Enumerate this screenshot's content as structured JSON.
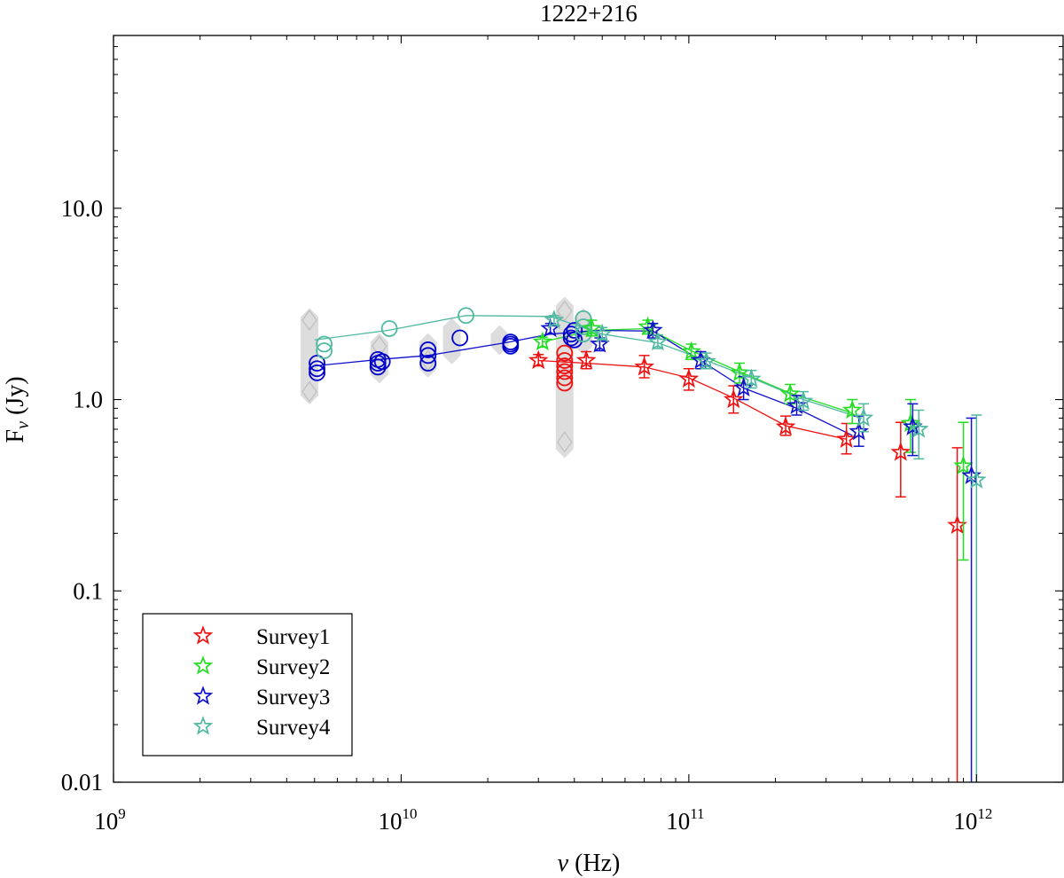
{
  "chart_data": {
    "type": "scatter",
    "title": "1222+216",
    "xlabel": {
      "symbol": "ν",
      "rest": " (Hz)"
    },
    "ylabel": {
      "symbol": "F",
      "subscript": "ν",
      "rest": " (Jy)"
    },
    "x_scale": "log",
    "y_scale": "log",
    "xlim": [
      1000000000.0,
      2000000000000.0
    ],
    "ylim": [
      0.01,
      80
    ],
    "x_ticks": [
      {
        "value": 1000000000.0,
        "base": "10",
        "exp": "9"
      },
      {
        "value": 10000000000.0,
        "base": "10",
        "exp": "10"
      },
      {
        "value": 100000000000.0,
        "base": "10",
        "exp": "11"
      },
      {
        "value": 1000000000000.0,
        "base": "10",
        "exp": "12"
      }
    ],
    "y_ticks": [
      {
        "value": 0.01,
        "label": "0.01"
      },
      {
        "value": 0.1,
        "label": "0.1"
      },
      {
        "value": 1,
        "label": "1.0"
      },
      {
        "value": 10,
        "label": "10.0"
      }
    ],
    "grid": false,
    "legend_position": "bottom-left",
    "gray_diamond_bands": [
      {
        "x": 4800000000.0,
        "ylo": 1.05,
        "yhi": 2.7
      },
      {
        "x": 8400000000.0,
        "ylo": 1.35,
        "yhi": 2.0
      },
      {
        "x": 12400000000.0,
        "ylo": 1.45,
        "yhi": 2.0
      },
      {
        "x": 15000000000.0,
        "ylo": 1.7,
        "yhi": 2.4
      },
      {
        "x": 22000000000.0,
        "ylo": 1.9,
        "yhi": 2.2
      },
      {
        "x": 37000000000.0,
        "ylo": 0.55,
        "yhi": 3.1
      },
      {
        "x": 43000000000.0,
        "ylo": 1.9,
        "yhi": 2.7
      }
    ],
    "gray_diamond_points": [
      {
        "x": 4800000000.0,
        "y": 2.6
      },
      {
        "x": 4800000000.0,
        "y": 1.1
      },
      {
        "x": 8400000000.0,
        "y": 1.9
      },
      {
        "x": 12400000000.0,
        "y": 1.6
      },
      {
        "x": 37000000000.0,
        "y": 0.6
      },
      {
        "x": 37000000000.0,
        "y": 2.9
      }
    ],
    "circles": [
      {
        "color": "#0000cc",
        "points": [
          {
            "x": 5100000000.0,
            "y": 1.55
          },
          {
            "x": 5100000000.0,
            "y": 1.45
          },
          {
            "x": 5100000000.0,
            "y": 1.38
          },
          {
            "x": 8300000000.0,
            "y": 1.62
          },
          {
            "x": 8300000000.0,
            "y": 1.55
          },
          {
            "x": 8300000000.0,
            "y": 1.48
          },
          {
            "x": 8600000000.0,
            "y": 1.58
          },
          {
            "x": 12400000000.0,
            "y": 1.82
          },
          {
            "x": 12400000000.0,
            "y": 1.7
          },
          {
            "x": 12400000000.0,
            "y": 1.55
          },
          {
            "x": 16000000000.0,
            "y": 2.1
          },
          {
            "x": 24000000000.0,
            "y": 2.0
          },
          {
            "x": 24000000000.0,
            "y": 1.95
          },
          {
            "x": 24000000000.0,
            "y": 1.9
          },
          {
            "x": 39000000000.0,
            "y": 2.2
          },
          {
            "x": 39000000000.0,
            "y": 2.1
          },
          {
            "x": 40000000000.0,
            "y": 2.3
          },
          {
            "x": 40000000000.0,
            "y": 2.05
          }
        ]
      },
      {
        "color": "#4fb9a0",
        "points": [
          {
            "x": 5400000000.0,
            "y": 1.95
          },
          {
            "x": 5400000000.0,
            "y": 1.8
          },
          {
            "x": 9100000000.0,
            "y": 2.35
          },
          {
            "x": 16800000000.0,
            "y": 2.75
          },
          {
            "x": 43000000000.0,
            "y": 2.65
          },
          {
            "x": 43000000000.0,
            "y": 2.4
          },
          {
            "x": 43000000000.0,
            "y": 2.2
          }
        ]
      },
      {
        "color": "#ee1111",
        "points": [
          {
            "x": 37000000000.0,
            "y": 1.75
          },
          {
            "x": 37000000000.0,
            "y": 1.6
          },
          {
            "x": 37000000000.0,
            "y": 1.5
          },
          {
            "x": 37000000000.0,
            "y": 1.4
          },
          {
            "x": 37000000000.0,
            "y": 1.3
          },
          {
            "x": 37000000000.0,
            "y": 1.22
          }
        ]
      }
    ],
    "series": [
      {
        "name": "Survey1",
        "color": "#ee1111",
        "line": [
          [
            30000000000.0,
            1.6
          ],
          [
            44000000000.0,
            1.55
          ],
          [
            70000000000.0,
            1.48
          ],
          [
            100000000000.0,
            1.3
          ],
          [
            143000000000.0,
            1.02
          ],
          [
            217000000000.0,
            0.73
          ],
          [
            353000000000.0,
            0.62
          ]
        ],
        "points": [
          {
            "x": 30000000000.0,
            "y": 1.6,
            "lo": 1.5,
            "hi": 1.72
          },
          {
            "x": 44000000000.0,
            "y": 1.6,
            "lo": 1.45,
            "hi": 1.78
          },
          {
            "x": 70000000000.0,
            "y": 1.48,
            "lo": 1.3,
            "hi": 1.7
          },
          {
            "x": 100000000000.0,
            "y": 1.28,
            "lo": 1.12,
            "hi": 1.45
          },
          {
            "x": 143000000000.0,
            "y": 1.0,
            "lo": 0.85,
            "hi": 1.18
          },
          {
            "x": 217000000000.0,
            "y": 0.72,
            "lo": 0.65,
            "hi": 0.82
          },
          {
            "x": 353000000000.0,
            "y": 0.62,
            "lo": 0.52,
            "hi": 0.75
          },
          {
            "x": 545000000000.0,
            "y": 0.53,
            "lo": 0.31,
            "hi": 0.76
          },
          {
            "x": 857000000000.0,
            "y": 0.22,
            "lo": 0.01,
            "hi": 0.56
          }
        ]
      },
      {
        "name": "Survey2",
        "color": "#22dd22",
        "line": [
          [
            31000000000.0,
            2.0
          ],
          [
            46000000000.0,
            2.3
          ],
          [
            72000000000.0,
            2.35
          ],
          [
            102000000000.0,
            1.8
          ],
          [
            150000000000.0,
            1.4
          ],
          [
            225000000000.0,
            1.08
          ],
          [
            370000000000.0,
            0.85
          ]
        ],
        "points": [
          {
            "x": 31000000000.0,
            "y": 2.0,
            "lo": 1.88,
            "hi": 2.12
          },
          {
            "x": 46000000000.0,
            "y": 2.35,
            "lo": 2.15,
            "hi": 2.6
          },
          {
            "x": 72000000000.0,
            "y": 2.4,
            "lo": 2.2,
            "hi": 2.6
          },
          {
            "x": 102000000000.0,
            "y": 1.78,
            "lo": 1.62,
            "hi": 1.95
          },
          {
            "x": 150000000000.0,
            "y": 1.38,
            "lo": 1.22,
            "hi": 1.55
          },
          {
            "x": 225000000000.0,
            "y": 1.07,
            "lo": 0.95,
            "hi": 1.2
          },
          {
            "x": 370000000000.0,
            "y": 0.88,
            "lo": 0.75,
            "hi": 1.0
          },
          {
            "x": 590000000000.0,
            "y": 0.75,
            "lo": 0.53,
            "hi": 1.0
          },
          {
            "x": 900000000000.0,
            "y": 0.45,
            "lo": 0.145,
            "hi": 0.76
          }
        ]
      },
      {
        "name": "Survey3",
        "color": "#1111cc",
        "line": [
          [
            5000000000.0,
            1.5
          ],
          [
            8400000000.0,
            1.62
          ],
          [
            12400000000.0,
            1.7
          ],
          [
            23000000000.0,
            1.98
          ],
          [
            33000000000.0,
            2.2
          ],
          [
            48000000000.0,
            2.3
          ],
          [
            75000000000.0,
            2.28
          ],
          [
            110000000000.0,
            1.6
          ],
          [
            155000000000.0,
            1.15
          ],
          [
            237000000000.0,
            0.9
          ],
          [
            370000000000.0,
            0.65
          ]
        ],
        "points": [
          {
            "x": 33000000000.0,
            "y": 2.35,
            "lo": 2.2,
            "hi": 2.5
          },
          {
            "x": 49000000000.0,
            "y": 1.95,
            "lo": 1.8,
            "hi": 2.1
          },
          {
            "x": 75000000000.0,
            "y": 2.3,
            "lo": 2.1,
            "hi": 2.5
          },
          {
            "x": 110000000000.0,
            "y": 1.6,
            "lo": 1.45,
            "hi": 1.78
          },
          {
            "x": 155000000000.0,
            "y": 1.15,
            "lo": 1.0,
            "hi": 1.32
          },
          {
            "x": 237000000000.0,
            "y": 0.93,
            "lo": 0.83,
            "hi": 1.05
          },
          {
            "x": 390000000000.0,
            "y": 0.68,
            "lo": 0.57,
            "hi": 0.82
          },
          {
            "x": 600000000000.0,
            "y": 0.72,
            "lo": 0.51,
            "hi": 0.95
          },
          {
            "x": 960000000000.0,
            "y": 0.4,
            "lo": 0.01,
            "hi": 0.8
          }
        ]
      },
      {
        "name": "Survey4",
        "color": "#4fb9a0",
        "line": [
          [
            5000000000.0,
            2.05
          ],
          [
            9000000000.0,
            2.3
          ],
          [
            16800000000.0,
            2.75
          ],
          [
            33000000000.0,
            2.72
          ],
          [
            50000000000.0,
            2.2
          ],
          [
            78000000000.0,
            1.98
          ],
          [
            115000000000.0,
            1.6
          ],
          [
            165000000000.0,
            1.3
          ],
          [
            250000000000.0,
            1.0
          ],
          [
            400000000000.0,
            0.8
          ]
        ],
        "points": [
          {
            "x": 34000000000.0,
            "y": 2.6,
            "lo": 2.45,
            "hi": 2.75
          },
          {
            "x": 50000000000.0,
            "y": 2.2,
            "lo": 2.05,
            "hi": 2.38
          },
          {
            "x": 78000000000.0,
            "y": 2.0,
            "lo": 1.85,
            "hi": 2.18
          },
          {
            "x": 115000000000.0,
            "y": 1.58,
            "lo": 1.45,
            "hi": 1.75
          },
          {
            "x": 165000000000.0,
            "y": 1.28,
            "lo": 1.15,
            "hi": 1.42
          },
          {
            "x": 250000000000.0,
            "y": 0.98,
            "lo": 0.88,
            "hi": 1.1
          },
          {
            "x": 405000000000.0,
            "y": 0.8,
            "lo": 0.68,
            "hi": 0.95
          },
          {
            "x": 630000000000.0,
            "y": 0.7,
            "lo": 0.49,
            "hi": 0.88
          },
          {
            "x": 1000000000000.0,
            "y": 0.38,
            "lo": 0.01,
            "hi": 0.83
          }
        ]
      }
    ]
  }
}
